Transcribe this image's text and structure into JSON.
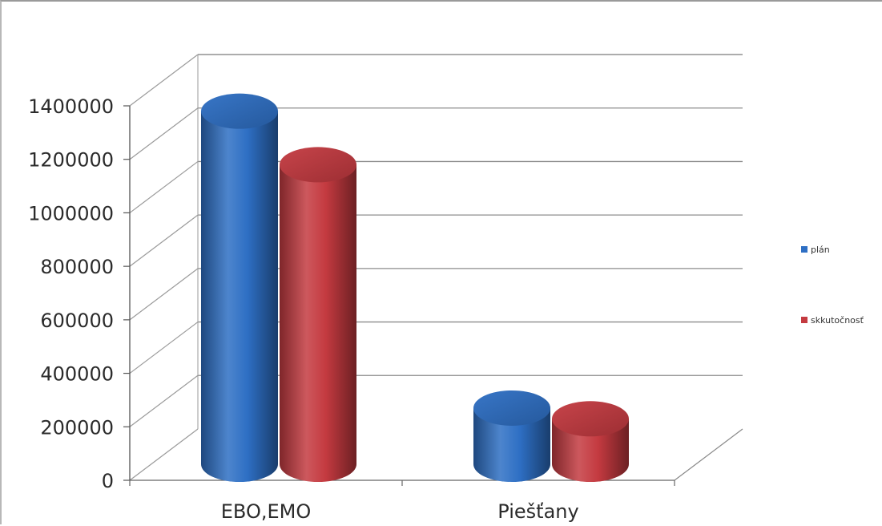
{
  "chart_data": {
    "type": "bar",
    "style": "3d-cylinder",
    "categories": [
      "EBO,EMO",
      "Piešťany"
    ],
    "series": [
      {
        "name": "plán",
        "color": "#2e6fc4",
        "values": [
          1320000,
          210000
        ]
      },
      {
        "name": "skkutočnosť",
        "color": "#c43a40",
        "values": [
          1120000,
          170000
        ]
      }
    ],
    "ylim": [
      0,
      1400000
    ],
    "yticks": [
      0,
      200000,
      400000,
      600000,
      800000,
      1000000,
      1200000,
      1400000
    ],
    "ytick_labels": [
      "0",
      "200000",
      "400000",
      "600000",
      "800000",
      "1000000",
      "1200000",
      "1400000"
    ],
    "grid": true,
    "legend_position": "right"
  }
}
